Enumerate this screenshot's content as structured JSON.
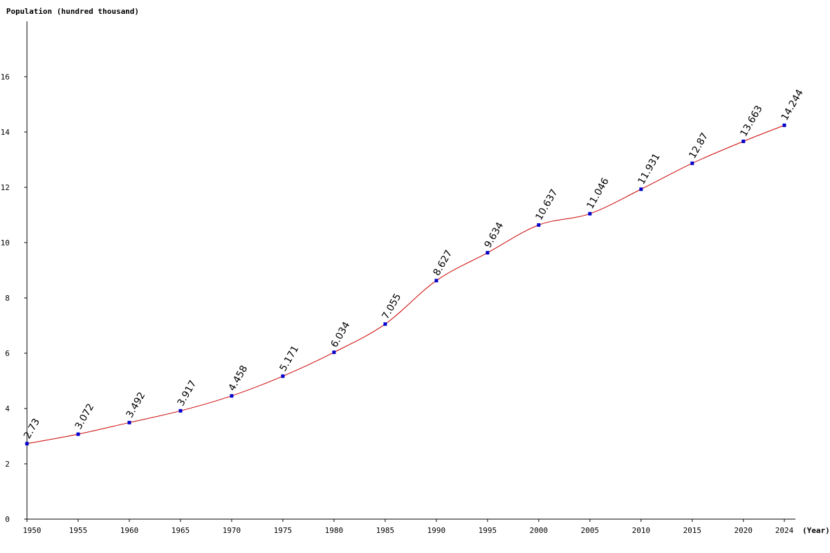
{
  "chart_data": {
    "type": "line",
    "ylabel": "Population (hundred thousand)",
    "xlabel": "(Year)",
    "ylim": [
      0,
      18
    ],
    "y_ticks": [
      "0",
      "2",
      "4",
      "6",
      "8",
      "10",
      "12",
      "14",
      "16"
    ],
    "x_ticks": [
      "1950",
      "1955",
      "1960",
      "1965",
      "1970",
      "1975",
      "1980",
      "1985",
      "1990",
      "1995",
      "2000",
      "2005",
      "2010",
      "2015",
      "2020",
      "2024"
    ],
    "x": [
      1950,
      1955,
      1960,
      1965,
      1970,
      1975,
      1980,
      1985,
      1990,
      1995,
      2000,
      2005,
      2010,
      2015,
      2020,
      2024
    ],
    "values": [
      2.73,
      3.072,
      3.492,
      3.917,
      4.458,
      5.171,
      6.034,
      7.055,
      8.627,
      9.634,
      10.637,
      11.046,
      11.931,
      12.87,
      13.663,
      14.244
    ],
    "labels": [
      "2.73",
      "3.072",
      "3.492",
      "3.917",
      "4.458",
      "5.171",
      "6.034",
      "7.055",
      "8.627",
      "9.634",
      "10.637",
      "11.046",
      "11.931",
      "12.87",
      "13.663",
      "14.244"
    ],
    "line_color": "#cc0000",
    "marker_color": "#0000cc",
    "grid": false
  }
}
